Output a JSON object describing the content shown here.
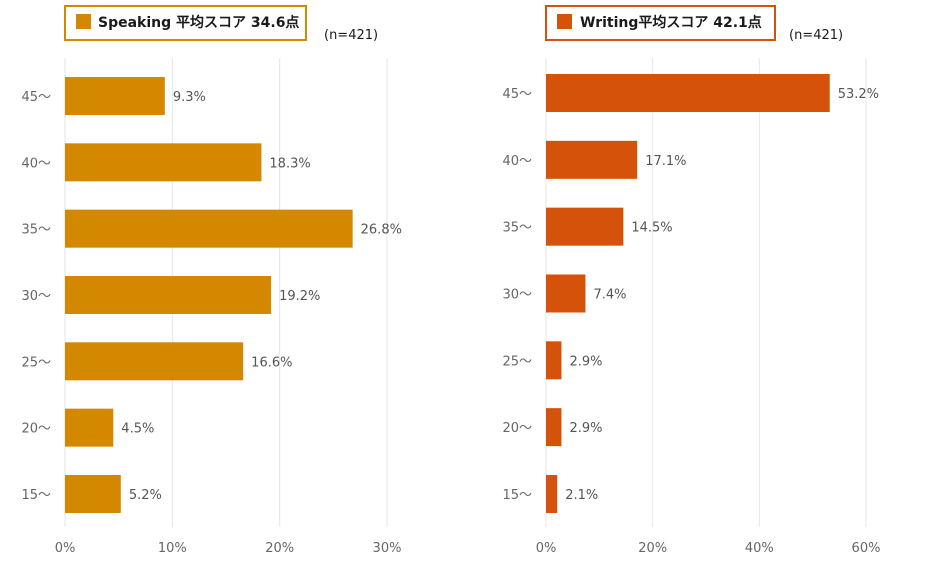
{
  "colors": {
    "speaking": "#d48800",
    "writing": "#d4520a",
    "grid": "#e6e6e6",
    "text": "#666666"
  },
  "chart_data": [
    {
      "type": "bar",
      "orientation": "horizontal",
      "title": "Speaking 平均スコア 34.6点",
      "note": "(n=421)",
      "categories": [
        "45～",
        "40～",
        "35～",
        "30～",
        "25～",
        "20～",
        "15～"
      ],
      "values": [
        9.3,
        18.3,
        26.8,
        19.2,
        16.6,
        4.5,
        5.2
      ],
      "value_labels": [
        "9.3%",
        "18.3%",
        "26.8%",
        "19.2%",
        "16.6%",
        "4.5%",
        "5.2%"
      ],
      "xlim": [
        0,
        30
      ],
      "xticks": [
        0,
        10,
        20,
        30
      ],
      "xtick_labels": [
        "0%",
        "10%",
        "20%",
        "30%"
      ],
      "grid": true,
      "color": "#d48800"
    },
    {
      "type": "bar",
      "orientation": "horizontal",
      "title": "Writing平均スコア 42.1点",
      "note": "(n=421)",
      "categories": [
        "45～",
        "40～",
        "35～",
        "30～",
        "25～",
        "20～",
        "15～"
      ],
      "values": [
        53.2,
        17.1,
        14.5,
        7.4,
        2.9,
        2.9,
        2.1
      ],
      "value_labels": [
        "53.2%",
        "17.1%",
        "14.5%",
        "7.4%",
        "2.9%",
        "2.9%",
        "2.1%"
      ],
      "xlim": [
        0,
        60
      ],
      "xticks": [
        0,
        20,
        40,
        60
      ],
      "xtick_labels": [
        "0%",
        "20%",
        "40%",
        "60%"
      ],
      "grid": true,
      "color": "#d4520a"
    }
  ]
}
